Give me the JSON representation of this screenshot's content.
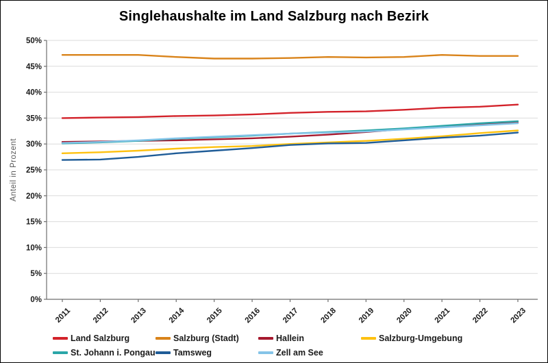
{
  "title": "Singlehaushalte im Land Salzburg nach Bezirk",
  "axes": {
    "y_title": "Anteil in Prozent",
    "y_tick_labels": [
      "0%",
      "5%",
      "10%",
      "15%",
      "20%",
      "25%",
      "30%",
      "35%",
      "40%",
      "45%",
      "50%"
    ],
    "x_tick_labels": [
      "2011",
      "2012",
      "2013",
      "2014",
      "2015",
      "2016",
      "2017",
      "2018",
      "2019",
      "2020",
      "2021",
      "2022",
      "2023"
    ]
  },
  "colors": {
    "grid": "#dbdbdb",
    "axis": "#6e6e6e",
    "title_text": "#000000",
    "tick_text": "#1a1a1a",
    "y_axis_title_text": "#595959"
  },
  "chart_data": {
    "type": "line",
    "title": "Singlehaushalte im Land Salzburg nach Bezirk",
    "xlabel": "",
    "ylabel": "Anteil in Prozent",
    "x": [
      2011,
      2012,
      2013,
      2014,
      2015,
      2016,
      2017,
      2018,
      2019,
      2020,
      2021,
      2022,
      2023
    ],
    "ylim": [
      0,
      50
    ],
    "ytick_step": 5,
    "ytick_suffix": "%",
    "grid": true,
    "legend_position": "bottom",
    "series": [
      {
        "name": "Land Salzburg",
        "color": "#d3222a",
        "values": [
          35.0,
          35.1,
          35.2,
          35.4,
          35.5,
          35.7,
          36.0,
          36.2,
          36.3,
          36.6,
          37.0,
          37.2,
          37.6
        ]
      },
      {
        "name": "Salzburg (Stadt)",
        "color": "#d9831a",
        "values": [
          47.2,
          47.2,
          47.2,
          46.8,
          46.5,
          46.5,
          46.6,
          46.8,
          46.7,
          46.8,
          47.2,
          47.0,
          47.0
        ]
      },
      {
        "name": "Hallein",
        "color": "#a6192e",
        "values": [
          30.4,
          30.5,
          30.6,
          30.7,
          30.9,
          31.1,
          31.4,
          31.8,
          32.3,
          32.9,
          33.4,
          33.8,
          34.1
        ]
      },
      {
        "name": "Salzburg-Umgebung",
        "color": "#fec110",
        "values": [
          28.2,
          28.4,
          28.7,
          29.1,
          29.4,
          29.6,
          30.0,
          30.3,
          30.6,
          31.0,
          31.5,
          32.1,
          32.6
        ]
      },
      {
        "name": "St. Johann i. Pongau",
        "color": "#2ba6a8",
        "values": [
          30.1,
          30.3,
          30.6,
          31.0,
          31.3,
          31.6,
          32.0,
          32.3,
          32.6,
          33.0,
          33.5,
          34.0,
          34.4
        ]
      },
      {
        "name": "Tamsweg",
        "color": "#1f5c97",
        "values": [
          26.9,
          27.0,
          27.5,
          28.2,
          28.7,
          29.2,
          29.8,
          30.1,
          30.2,
          30.7,
          31.2,
          31.6,
          32.2
        ]
      },
      {
        "name": "Zell am See",
        "color": "#85c4e8",
        "values": [
          30.2,
          30.4,
          30.7,
          31.1,
          31.4,
          31.7,
          32.0,
          32.2,
          32.4,
          32.8,
          33.2,
          33.6,
          34.0
        ]
      }
    ]
  }
}
